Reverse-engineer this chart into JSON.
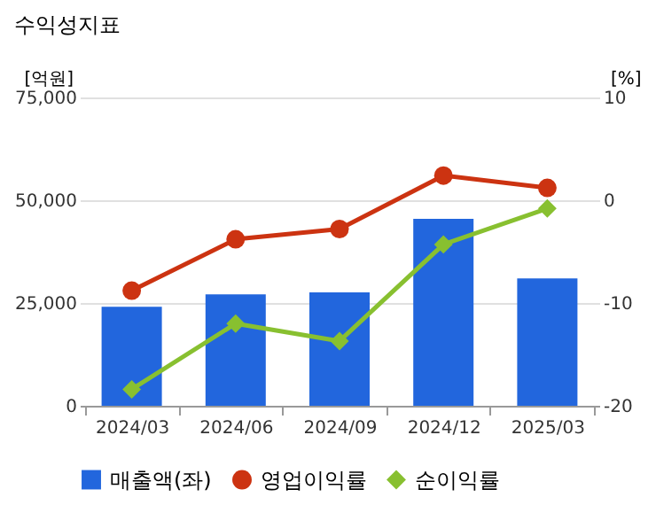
{
  "chart_data": {
    "type": "bar",
    "title": "수익성지표",
    "categories": [
      "2024/03",
      "2024/06",
      "2024/09",
      "2024/12",
      "2025/03"
    ],
    "series": [
      {
        "name": "매출액(좌)",
        "color": "#2266dd",
        "values": [
          24100,
          27100,
          27600,
          45500,
          31000
        ]
      },
      {
        "name": "영업이익률",
        "type": "line",
        "axis": "y2",
        "marker": "circle",
        "color": "#cc3311",
        "values": [
          -8.8,
          -3.8,
          -2.8,
          2.4,
          1.2
        ]
      },
      {
        "name": "순이익률",
        "type": "line",
        "axis": "y2",
        "marker": "diamond",
        "color": "#88c030",
        "values": [
          -18.4,
          -12.0,
          -13.7,
          -4.3,
          -0.8
        ]
      }
    ],
    "ylabel": "[억원]",
    "y2label": "[%]",
    "ylim": [
      0,
      75000
    ],
    "yticks": [
      0,
      {
        "value": 25000,
        "label": "25,000"
      },
      {
        "value": 50000,
        "label": "50,000"
      },
      {
        "value": 75000,
        "label": "75,000"
      }
    ],
    "y2lim": [
      -20,
      10
    ],
    "y2ticks": [
      -20,
      -10,
      0,
      10
    ],
    "grid": "y",
    "legend": "bottom"
  }
}
